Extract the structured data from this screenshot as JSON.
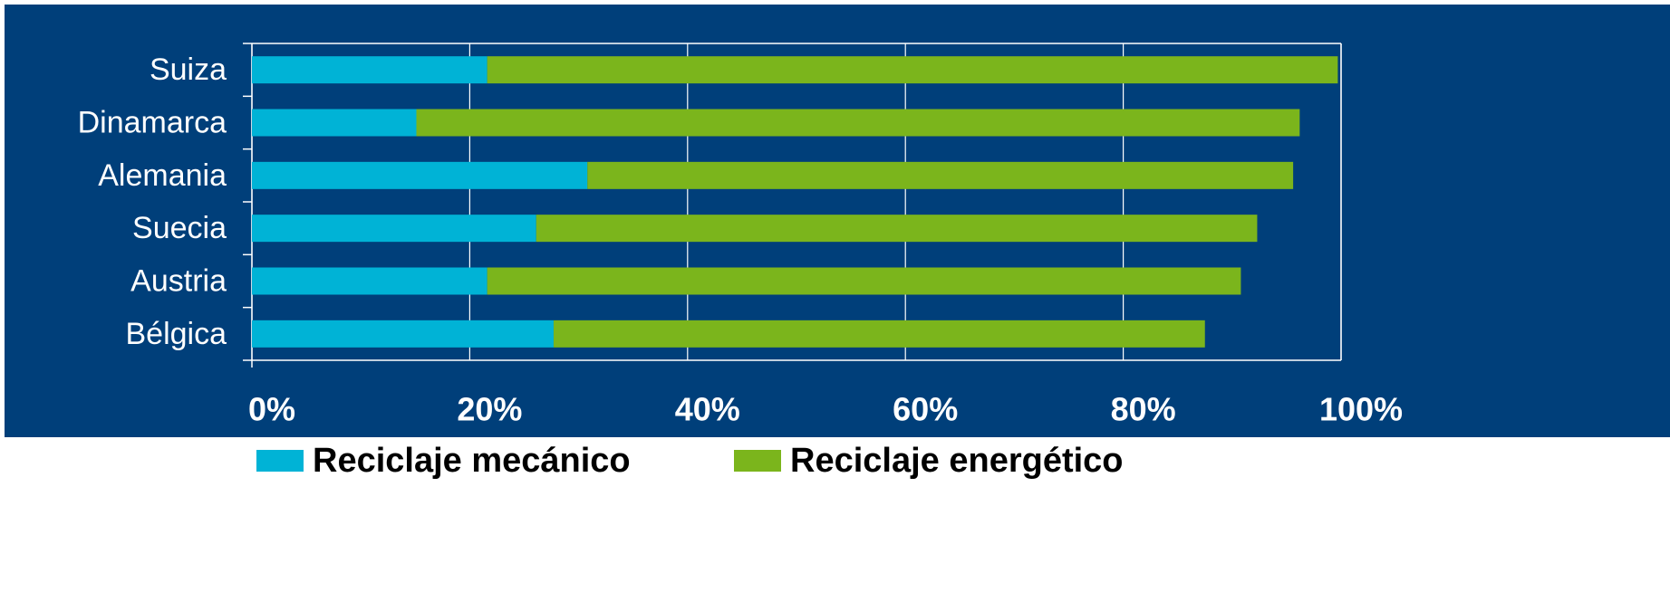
{
  "chart_data": {
    "type": "stacked-barh",
    "categories": [
      "Suiza",
      "Dinamarca",
      "Alemania",
      "Suecia",
      "Austria",
      "Bélgica"
    ],
    "series": [
      {
        "name": "Reciclaje mecánico",
        "color": "#00b3d6",
        "values": [
          21.6,
          15.1,
          30.8,
          26.1,
          21.6,
          27.7
        ]
      },
      {
        "name": "Reciclaje energético",
        "color": "#7bb51c",
        "values": [
          78.1,
          81.1,
          64.8,
          66.2,
          69.2,
          59.8
        ]
      }
    ],
    "xlim": [
      0,
      100
    ],
    "xticks": [
      {
        "value": 0,
        "label": "0%"
      },
      {
        "value": 20,
        "label": "20%"
      },
      {
        "value": 40,
        "label": "40%"
      },
      {
        "value": 60,
        "label": "60%"
      },
      {
        "value": 80,
        "label": "80%"
      },
      {
        "value": 100,
        "label": "100%"
      }
    ],
    "grid": true
  }
}
